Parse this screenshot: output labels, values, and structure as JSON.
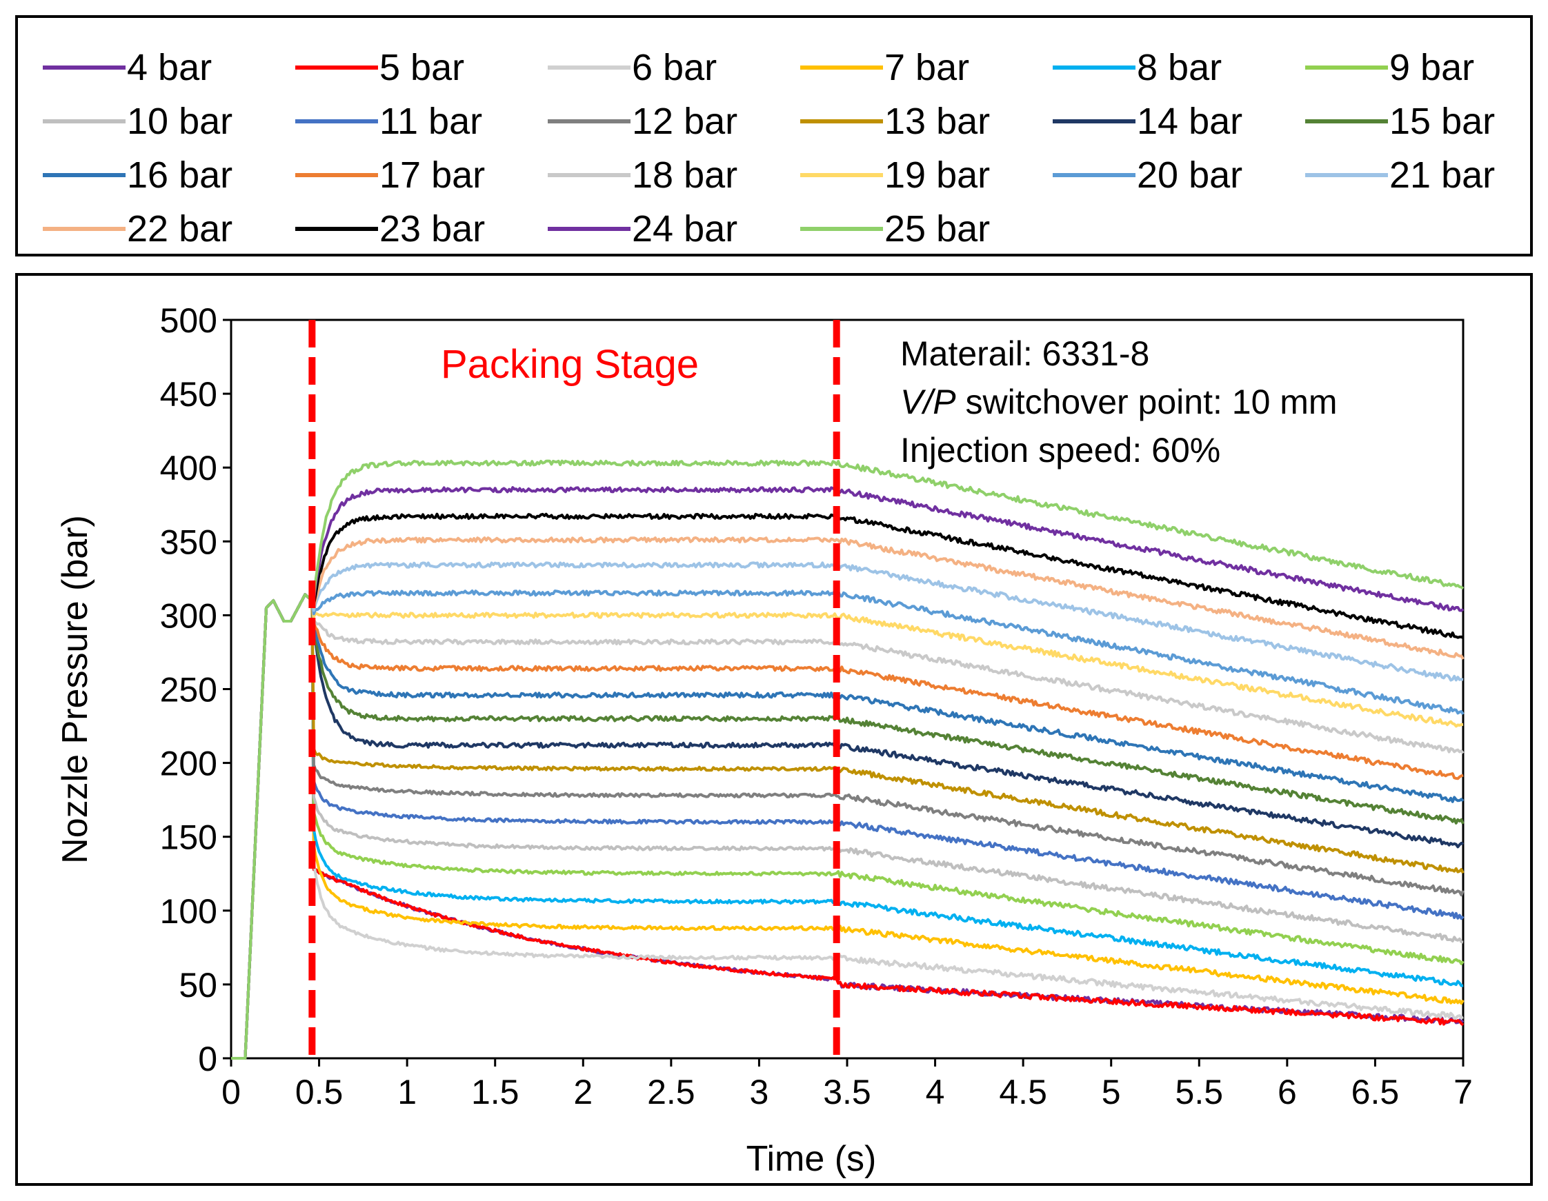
{
  "chart_data": {
    "type": "line",
    "xlabel": "Time (s)",
    "ylabel": "Nozzle Pressure (bar)",
    "xlim": [
      0,
      7
    ],
    "ylim": [
      0,
      500
    ],
    "xticks": [
      0,
      0.5,
      1,
      1.5,
      2,
      2.5,
      3,
      3.5,
      4,
      4.5,
      5,
      5.5,
      6,
      6.5,
      7
    ],
    "xtick_labels": [
      "0",
      "0.5",
      "1",
      "1.5",
      "2",
      "2.5",
      "3",
      "3.5",
      "4",
      "4.5",
      "5",
      "5.5",
      "6",
      "6.5",
      "7"
    ],
    "yticks": [
      0,
      50,
      100,
      150,
      200,
      250,
      300,
      350,
      400,
      450,
      500
    ],
    "ytick_labels": [
      "0",
      "50",
      "100",
      "150",
      "200",
      "250",
      "300",
      "350",
      "400",
      "450",
      "500"
    ],
    "packing_stage": {
      "label": "Packing Stage",
      "start": 0.46,
      "end": 3.44,
      "color": "#ff0000"
    },
    "annotation": {
      "line1": "Materail: 6331-8",
      "line2_italic": "V/P",
      "line2_rest": " switchover point: 10 mm",
      "line3": "Injection speed: 60%"
    },
    "series": [
      {
        "name": "4 bar",
        "color": "#7030a0",
        "plateau": 50,
        "end": 25
      },
      {
        "name": "5 bar",
        "color": "#ff0000",
        "plateau": 50,
        "end": 24
      },
      {
        "name": "6 bar",
        "color": "#d0d0d0",
        "plateau": 68,
        "end": 28
      },
      {
        "name": "7 bar",
        "color": "#ffc000",
        "plateau": 88,
        "end": 38
      },
      {
        "name": "8 bar",
        "color": "#00b0f0",
        "plateau": 106,
        "end": 50
      },
      {
        "name": "9 bar",
        "color": "#92d050",
        "plateau": 125,
        "end": 65
      },
      {
        "name": "10 bar",
        "color": "#bfbfbf",
        "plateau": 142,
        "end": 80
      },
      {
        "name": "11 bar",
        "color": "#4472c4",
        "plateau": 160,
        "end": 96
      },
      {
        "name": "12 bar",
        "color": "#7f7f7f",
        "plateau": 178,
        "end": 112
      },
      {
        "name": "13 bar",
        "color": "#bf9000",
        "plateau": 196,
        "end": 126
      },
      {
        "name": "14 bar",
        "color": "#1f3864",
        "plateau": 212,
        "end": 144
      },
      {
        "name": "15 bar",
        "color": "#548235",
        "plateau": 230,
        "end": 160
      },
      {
        "name": "16 bar",
        "color": "#2e75b6",
        "plateau": 246,
        "end": 174
      },
      {
        "name": "17 bar",
        "color": "#ed7d31",
        "plateau": 264,
        "end": 190
      },
      {
        "name": "18 bar",
        "color": "#c9c9c9",
        "plateau": 282,
        "end": 207
      },
      {
        "name": "19 bar",
        "color": "#ffd966",
        "plateau": 300,
        "end": 225
      },
      {
        "name": "20 bar",
        "color": "#5b9bd5",
        "plateau": 315,
        "end": 234
      },
      {
        "name": "21 bar",
        "color": "#9dc3e6",
        "plateau": 334,
        "end": 256
      },
      {
        "name": "22 bar",
        "color": "#f4b183",
        "plateau": 351,
        "end": 272
      },
      {
        "name": "23 bar",
        "color": "#000000",
        "plateau": 367,
        "end": 285
      },
      {
        "name": "24 bar",
        "color": "#7030a0",
        "plateau": 385,
        "end": 303
      },
      {
        "name": "25 bar",
        "color": "#8fd06a",
        "plateau": 403,
        "end": 319
      }
    ]
  }
}
